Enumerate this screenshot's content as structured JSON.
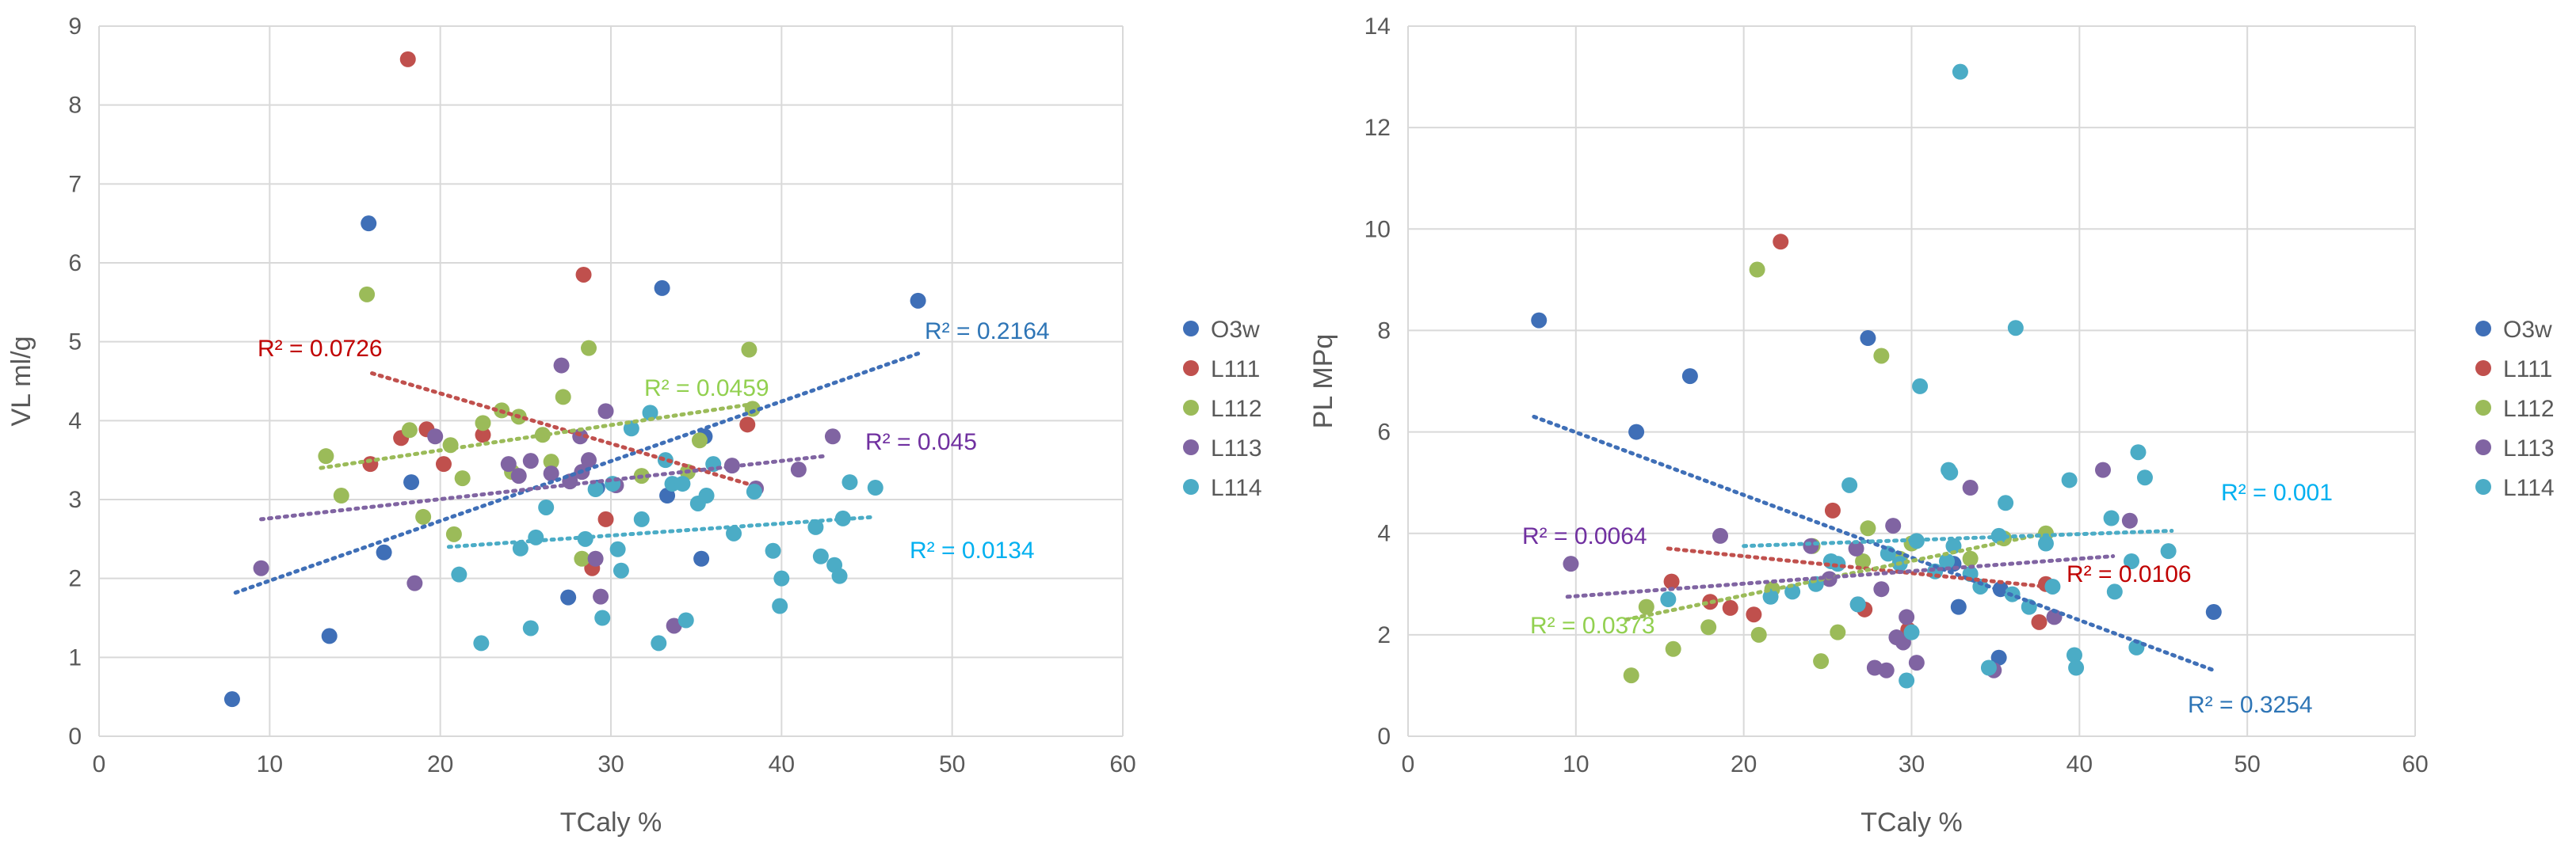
{
  "chart_data": [
    {
      "type": "scatter",
      "xlabel": "TCaly %",
      "ylabel": "VL ml/g",
      "xlim": [
        0,
        60
      ],
      "ylim": [
        0,
        9
      ],
      "xticks": [
        0,
        10,
        20,
        30,
        40,
        50,
        60
      ],
      "yticks": [
        0,
        1,
        2,
        3,
        4,
        5,
        6,
        7,
        8,
        9
      ],
      "grid": true,
      "legend_position": "right",
      "series": [
        {
          "name": "O3w",
          "color": "#3f6fb7",
          "points": [
            [
              7.8,
              0.47
            ],
            [
              13.5,
              1.27
            ],
            [
              15.8,
              6.5
            ],
            [
              16.7,
              2.33
            ],
            [
              18.3,
              3.22
            ],
            [
              27.5,
              1.76
            ],
            [
              29.2,
              3.15
            ],
            [
              33,
              5.68
            ],
            [
              33.3,
              3.05
            ],
            [
              35.3,
              2.25
            ],
            [
              35.5,
              3.8
            ],
            [
              48,
              5.52
            ]
          ],
          "trend": {
            "x": [
              8,
              48
            ],
            "y": [
              1.82,
              4.85
            ],
            "r2_label": "R² = 0.2164",
            "r2_color": "#2e75b6"
          }
        },
        {
          "name": "L111",
          "color": "#c0504d",
          "points": [
            [
              15.9,
              3.45
            ],
            [
              17.7,
              3.78
            ],
            [
              18.1,
              8.58
            ],
            [
              19.2,
              3.89
            ],
            [
              20.2,
              3.45
            ],
            [
              22.5,
              3.82
            ],
            [
              28.4,
              5.85
            ],
            [
              28.9,
              2.13
            ],
            [
              29.7,
              2.75
            ],
            [
              38,
              3.95
            ]
          ],
          "trend": {
            "x": [
              16,
              38
            ],
            "y": [
              4.6,
              3.2
            ],
            "r2_label": "R² = 0.0726",
            "r2_color": "#c00000"
          }
        },
        {
          "name": "L112",
          "color": "#9bbb59",
          "points": [
            [
              13.3,
              3.55
            ],
            [
              14.2,
              3.05
            ],
            [
              15.7,
              5.6
            ],
            [
              18.2,
              3.88
            ],
            [
              19,
              2.78
            ],
            [
              20.6,
              3.69
            ],
            [
              20.8,
              2.56
            ],
            [
              21.3,
              3.27
            ],
            [
              22.5,
              3.97
            ],
            [
              23.6,
              4.13
            ],
            [
              24.2,
              3.35
            ],
            [
              24.6,
              4.05
            ],
            [
              26,
              3.82
            ],
            [
              26.5,
              3.48
            ],
            [
              27.2,
              4.3
            ],
            [
              28.3,
              2.25
            ],
            [
              28.7,
              4.92
            ],
            [
              31.8,
              3.3
            ],
            [
              34.5,
              3.35
            ],
            [
              35.2,
              3.75
            ],
            [
              38.1,
              4.9
            ],
            [
              38.3,
              4.15
            ]
          ],
          "trend": {
            "x": [
              13,
              38
            ],
            "y": [
              3.4,
              4.2
            ],
            "r2_label": "R² = 0.0459",
            "r2_color": "#92d050"
          }
        },
        {
          "name": "L113",
          "color": "#8064a2",
          "points": [
            [
              9.5,
              2.13
            ],
            [
              18.5,
              1.94
            ],
            [
              19.7,
              3.8
            ],
            [
              24,
              3.45
            ],
            [
              24.6,
              3.3
            ],
            [
              25.3,
              3.49
            ],
            [
              26.5,
              3.33
            ],
            [
              27.1,
              4.7
            ],
            [
              27.6,
              3.23
            ],
            [
              28.2,
              3.8
            ],
            [
              28.3,
              3.35
            ],
            [
              28.7,
              3.5
            ],
            [
              29.1,
              2.25
            ],
            [
              29.4,
              1.77
            ],
            [
              29.7,
              4.12
            ],
            [
              30.3,
              3.18
            ],
            [
              33.7,
              1.4
            ],
            [
              37.1,
              3.43
            ],
            [
              38.5,
              3.14
            ],
            [
              41,
              3.38
            ],
            [
              43,
              3.8
            ]
          ],
          "trend": {
            "x": [
              9.5,
              42.5
            ],
            "y": [
              2.75,
              3.55
            ],
            "r2_label": "R² = 0.045",
            "r2_color": "#7030a0"
          }
        },
        {
          "name": "L114",
          "color": "#4bacc6",
          "points": [
            [
              21.1,
              2.05
            ],
            [
              22.4,
              1.18
            ],
            [
              24.7,
              2.38
            ],
            [
              25.3,
              1.37
            ],
            [
              25.6,
              2.52
            ],
            [
              26.2,
              2.9
            ],
            [
              28.5,
              2.5
            ],
            [
              29.1,
              3.13
            ],
            [
              29.5,
              1.5
            ],
            [
              30.1,
              3.2
            ],
            [
              30.4,
              2.37
            ],
            [
              30.6,
              2.1
            ],
            [
              31.2,
              3.9
            ],
            [
              31.8,
              2.75
            ],
            [
              32.3,
              4.1
            ],
            [
              32.8,
              1.18
            ],
            [
              33.2,
              3.5
            ],
            [
              33.6,
              3.2
            ],
            [
              34.2,
              3.2
            ],
            [
              34.4,
              1.47
            ],
            [
              35.1,
              2.95
            ],
            [
              35.6,
              3.05
            ],
            [
              36,
              3.45
            ],
            [
              37.2,
              2.57
            ],
            [
              38.4,
              3.1
            ],
            [
              39.5,
              2.35
            ],
            [
              39.9,
              1.65
            ],
            [
              40,
              2
            ],
            [
              42,
              2.65
            ],
            [
              42.3,
              2.28
            ],
            [
              43.1,
              2.17
            ],
            [
              43.4,
              2.03
            ],
            [
              43.6,
              2.76
            ],
            [
              44,
              3.22
            ],
            [
              45.5,
              3.15
            ]
          ],
          "trend": {
            "x": [
              20.5,
              45.5
            ],
            "y": [
              2.4,
              2.78
            ],
            "r2_label": "R² = 0.0134",
            "r2_color": "#00b0f0"
          }
        }
      ]
    },
    {
      "type": "scatter",
      "xlabel": "TCaly %",
      "ylabel": "PL MPq",
      "xlim": [
        0,
        60
      ],
      "ylim": [
        0,
        14
      ],
      "xticks": [
        0,
        10,
        20,
        30,
        40,
        50,
        60
      ],
      "yticks": [
        0,
        2,
        4,
        6,
        8,
        10,
        12,
        14
      ],
      "grid": true,
      "legend_position": "right",
      "series": [
        {
          "name": "O3w",
          "color": "#3f6fb7",
          "points": [
            [
              7.8,
              8.2
            ],
            [
              13.6,
              6
            ],
            [
              16.8,
              7.1
            ],
            [
              27.4,
              7.85
            ],
            [
              32.5,
              3.4
            ],
            [
              32.8,
              2.55
            ],
            [
              35.2,
              1.55
            ],
            [
              35.3,
              2.9
            ],
            [
              48,
              2.45
            ]
          ],
          "trend": {
            "x": [
              7.5,
              48
            ],
            "y": [
              6.3,
              1.3
            ],
            "r2_label": "R² = 0.3254",
            "r2_color": "#2e75b6"
          }
        },
        {
          "name": "L111",
          "color": "#c0504d",
          "points": [
            [
              15.7,
              3.05
            ],
            [
              18,
              2.65
            ],
            [
              19.2,
              2.53
            ],
            [
              20.6,
              2.4
            ],
            [
              22.2,
              9.75
            ],
            [
              25.3,
              4.45
            ],
            [
              27.2,
              2.5
            ],
            [
              29.8,
              2.1
            ],
            [
              37.6,
              2.25
            ],
            [
              38,
              3
            ]
          ],
          "trend": {
            "x": [
              15.5,
              38
            ],
            "y": [
              3.7,
              2.95
            ],
            "r2_label": "R² = 0.0106",
            "r2_color": "#c00000"
          }
        },
        {
          "name": "L112",
          "color": "#9bbb59",
          "points": [
            [
              13.3,
              1.2
            ],
            [
              14.2,
              2.55
            ],
            [
              15.8,
              1.72
            ],
            [
              17.9,
              2.15
            ],
            [
              20.8,
              9.2
            ],
            [
              20.9,
              2.0
            ],
            [
              21.7,
              2.9
            ],
            [
              24.1,
              3.75
            ],
            [
              24.6,
              1.48
            ],
            [
              25.6,
              2.05
            ],
            [
              27.1,
              3.45
            ],
            [
              27.4,
              4.1
            ],
            [
              28.2,
              7.5
            ],
            [
              29.3,
              3.5
            ],
            [
              30,
              3.8
            ],
            [
              33.5,
              3.5
            ],
            [
              35.5,
              3.9
            ],
            [
              38,
              4
            ]
          ],
          "trend": {
            "x": [
              13,
              38
            ],
            "y": [
              2.3,
              4.0
            ],
            "r2_label": "R² = 0.0373",
            "r2_color": "#92d050"
          }
        },
        {
          "name": "L113",
          "color": "#8064a2",
          "points": [
            [
              9.7,
              3.4
            ],
            [
              18.6,
              3.95
            ],
            [
              24,
              3.75
            ],
            [
              25.1,
              3.1
            ],
            [
              26.7,
              3.7
            ],
            [
              26.8,
              2.6
            ],
            [
              27.8,
              1.35
            ],
            [
              28.2,
              2.9
            ],
            [
              28.5,
              1.3
            ],
            [
              28.9,
              4.15
            ],
            [
              29.1,
              1.95
            ],
            [
              29.5,
              1.85
            ],
            [
              29.7,
              2.35
            ],
            [
              30.3,
              1.45
            ],
            [
              33.5,
              4.9
            ],
            [
              34.9,
              1.3
            ],
            [
              38.5,
              2.35
            ],
            [
              41.4,
              5.25
            ],
            [
              43,
              4.25
            ]
          ],
          "trend": {
            "x": [
              9.5,
              42
            ],
            "y": [
              2.75,
              3.55
            ],
            "r2_label": "R² = 0.0064",
            "r2_color": "#7030a0"
          }
        },
        {
          "name": "L114",
          "color": "#4bacc6",
          "points": [
            [
              15.5,
              2.7
            ],
            [
              21.6,
              2.75
            ],
            [
              22.9,
              2.85
            ],
            [
              24.3,
              3.0
            ],
            [
              25.2,
              3.45
            ],
            [
              25.6,
              3.4
            ],
            [
              26.3,
              4.95
            ],
            [
              26.8,
              2.6
            ],
            [
              28.6,
              3.6
            ],
            [
              29.3,
              3.4
            ],
            [
              29.7,
              1.1
            ],
            [
              30,
              2.05
            ],
            [
              30.3,
              3.85
            ],
            [
              30.5,
              6.9
            ],
            [
              31.4,
              3.25
            ],
            [
              32.1,
              3.45
            ],
            [
              32.2,
              5.25
            ],
            [
              32.3,
              5.2
            ],
            [
              32.5,
              3.75
            ],
            [
              32.9,
              13.1
            ],
            [
              33.5,
              3.2
            ],
            [
              34.1,
              2.95
            ],
            [
              34.6,
              1.35
            ],
            [
              35.2,
              3.95
            ],
            [
              35.6,
              4.6
            ],
            [
              36,
              2.8
            ],
            [
              36.2,
              8.05
            ],
            [
              37,
              2.55
            ],
            [
              38,
              3.8
            ],
            [
              38.4,
              2.95
            ],
            [
              39.4,
              5.05
            ],
            [
              39.7,
              1.6
            ],
            [
              39.8,
              1.35
            ],
            [
              41.9,
              4.3
            ],
            [
              42.1,
              2.85
            ],
            [
              43.1,
              3.45
            ],
            [
              43.4,
              1.75
            ],
            [
              43.5,
              5.6
            ],
            [
              43.9,
              5.1
            ],
            [
              45.3,
              3.65
            ]
          ],
          "trend": {
            "x": [
              20,
              45.5
            ],
            "y": [
              3.75,
              4.05
            ],
            "r2_label": "R² = 0.001",
            "r2_color": "#00b0f0"
          }
        }
      ]
    }
  ]
}
